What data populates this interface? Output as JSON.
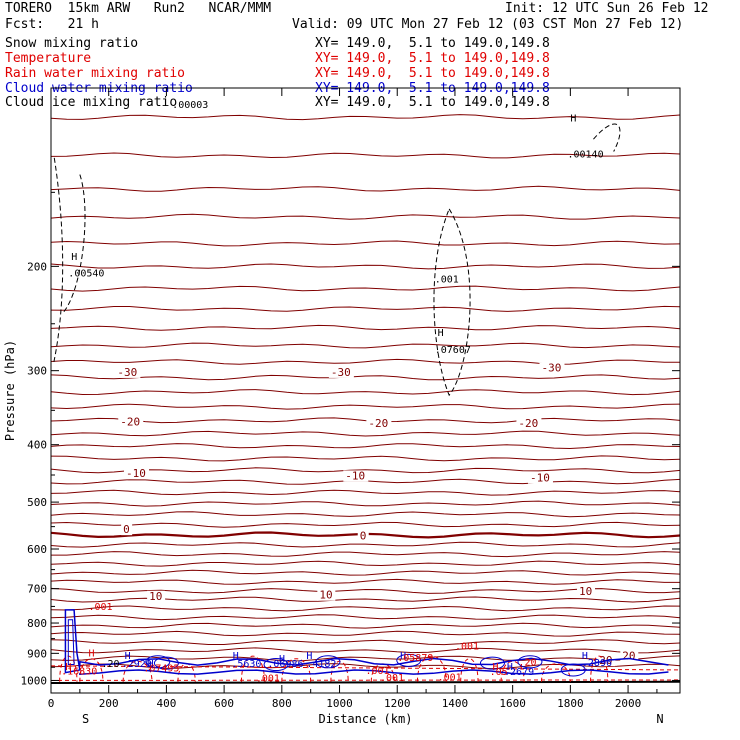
{
  "header": {
    "title_left": "TORERO  15km ARW   Run2   NCAR/MMM",
    "init": "Init: 12 UTC Sun 26 Feb 12",
    "fcst": "Fcst:   21 h",
    "valid": "Valid: 09 UTC Mon 27 Feb 12 (03 CST Mon 27 Feb 12)"
  },
  "legend": [
    {
      "label": "Snow mixing ratio",
      "xy": "",
      "color": "#000000"
    },
    {
      "label": "Temperature",
      "xy": "XY= 149.0,  5.1 to 149.0,149.8",
      "color": "#e00000"
    },
    {
      "label": "Rain water mixing ratio",
      "xy": "XY= 149.0,  5.1 to 149.0,149.8",
      "color": "#e00000"
    },
    {
      "label": "Cloud water mixing ratio",
      "xy": "XY= 149.0,  5.1 to 149.0,149.8",
      "color": "#0000cc"
    },
    {
      "label": "Cloud ice mixing ratio",
      "xy": "XY= 149.0,  5.1 to 149.0,149.8",
      "color": "#000000"
    }
  ],
  "legend_xy_first": "XY= 149.0,  5.1 to 149.0,149.8",
  "chart_data": {
    "type": "cross-section",
    "xlabel": "Distance (km)",
    "ylabel": "Pressure (hPa)",
    "xlim": [
      0,
      2180
    ],
    "ylim": [
      1050,
      100
    ],
    "x_ticks": [
      0,
      200,
      400,
      600,
      800,
      1000,
      1200,
      1400,
      1600,
      1800,
      2000
    ],
    "y_ticks": [
      200,
      300,
      400,
      500,
      600,
      700,
      800,
      900,
      1000
    ],
    "left_end": "S",
    "right_end": "N",
    "temperature_contours": [
      {
        "value": -30,
        "labels": [
          {
            "x": 230,
            "p": 305
          },
          {
            "x": 970,
            "p": 305
          },
          {
            "x": 1700,
            "p": 300
          }
        ]
      },
      {
        "value": -20,
        "labels": [
          {
            "x": 240,
            "p": 370
          },
          {
            "x": 1100,
            "p": 372
          },
          {
            "x": 1620,
            "p": 372
          }
        ]
      },
      {
        "value": -10,
        "labels": [
          {
            "x": 260,
            "p": 452
          },
          {
            "x": 1020,
            "p": 456
          },
          {
            "x": 1660,
            "p": 460
          }
        ]
      },
      {
        "value": 0,
        "labels": [
          {
            "x": 250,
            "p": 562
          },
          {
            "x": 1070,
            "p": 576
          }
        ],
        "bold": true
      },
      {
        "value": 10,
        "labels": [
          {
            "x": 340,
            "p": 728
          },
          {
            "x": 930,
            "p": 725
          },
          {
            "x": 1830,
            "p": 715
          }
        ]
      },
      {
        "value": 20,
        "labels": [
          {
            "x": 1980,
            "p": 918
          },
          {
            "x": 1900,
            "p": 935
          }
        ]
      }
    ],
    "isotherm_pressures": [
      112,
      130,
      148,
      165,
      183,
      200,
      218,
      236,
      254,
      272,
      290,
      308,
      326,
      345,
      364,
      383,
      402,
      422,
      442,
      462,
      482,
      503,
      524,
      546,
      568,
      590,
      612,
      635,
      658,
      682,
      706,
      730,
      756,
      782,
      808,
      834,
      862,
      890,
      918,
      946
    ],
    "annotations": [
      {
        "text": "H",
        "x": 70,
        "p": 195,
        "color": "#000000"
      },
      {
        "text": ".00540",
        "x": 60,
        "p": 208,
        "color": "#000000"
      },
      {
        "text": ".00003",
        "x": 420,
        "p": 108,
        "color": "#000000"
      },
      {
        "text": ".001",
        "x": 1330,
        "p": 213,
        "color": "#000000"
      },
      {
        "text": "H",
        "x": 1340,
        "p": 262,
        "color": "#000000"
      },
      {
        "text": ".07607",
        "x": 1330,
        "p": 280,
        "color": "#000000"
      },
      {
        "text": "H",
        "x": 1800,
        "p": 114,
        "color": "#000000"
      },
      {
        "text": ".00140",
        "x": 1790,
        "p": 131,
        "color": "#000000"
      },
      {
        "text": "H",
        "x": 130,
        "p": 912,
        "color": "#e00000"
      },
      {
        "text": ".001",
        "x": 130,
        "p": 760,
        "color": "#e00000"
      },
      {
        "text": "H",
        "x": 50,
        "p": 960,
        "color": "#e00000"
      },
      {
        "text": ".16830",
        "x": 35,
        "p": 978,
        "color": "#e00000"
      },
      {
        "text": ".20",
        "x": 175,
        "p": 950,
        "color": "#000000"
      },
      {
        "text": ".2929",
        "x": 245,
        "p": 950,
        "color": "#0000cc"
      },
      {
        "text": "H",
        "x": 255,
        "p": 920,
        "color": "#0000cc"
      },
      {
        "text": "H",
        "x": 335,
        "p": 950,
        "color": "#0000cc"
      },
      {
        "text": ".07495",
        "x": 320,
        "p": 965,
        "color": "#e00000"
      },
      {
        "text": "H",
        "x": 630,
        "p": 920,
        "color": "#0000cc"
      },
      {
        "text": ".5630",
        "x": 625,
        "p": 950,
        "color": "#0000cc"
      },
      {
        "text": "H",
        "x": 790,
        "p": 930,
        "color": "#0000cc"
      },
      {
        "text": ".06986",
        "x": 750,
        "p": 950,
        "color": "#0000cc"
      },
      {
        "text": "H",
        "x": 885,
        "p": 920,
        "color": "#0000cc"
      },
      {
        "text": ".4182",
        "x": 885,
        "p": 950,
        "color": "#0000cc"
      },
      {
        "text": ".001",
        "x": 1090,
        "p": 975,
        "color": "#e00000"
      },
      {
        "text": "H",
        "x": 1210,
        "p": 920,
        "color": "#0000cc"
      },
      {
        "text": ".05879",
        "x": 1200,
        "p": 928,
        "color": "#e00000"
      },
      {
        "text": ".001",
        "x": 1400,
        "p": 887,
        "color": "#e00000"
      },
      {
        "text": ".001",
        "x": 710,
        "p": 1005,
        "color": "#e00000"
      },
      {
        "text": ".001",
        "x": 1140,
        "p": 1003,
        "color": "#e00000"
      },
      {
        "text": ".001",
        "x": 1340,
        "p": 1000,
        "color": "#e00000"
      },
      {
        "text": "H",
        "x": 1530,
        "p": 960,
        "color": "#e00000"
      },
      {
        "text": "H",
        "x": 1580,
        "p": 960,
        "color": "#0000cc"
      },
      {
        "text": ".05",
        "x": 1520,
        "p": 980,
        "color": "#e00000"
      },
      {
        "text": ".2679",
        "x": 1570,
        "p": 980,
        "color": "#0000cc"
      },
      {
        "text": ".20",
        "x": 1620,
        "p": 943,
        "color": "#e00000"
      },
      {
        "text": "H",
        "x": 1840,
        "p": 920,
        "color": "#0000cc"
      },
      {
        "text": ".2896",
        "x": 1840,
        "p": 945,
        "color": "#0000cc"
      }
    ]
  },
  "colors": {
    "temperature": "#800000",
    "rain": "#e00000",
    "cloud_water": "#0000cc",
    "ice": "#000000"
  }
}
